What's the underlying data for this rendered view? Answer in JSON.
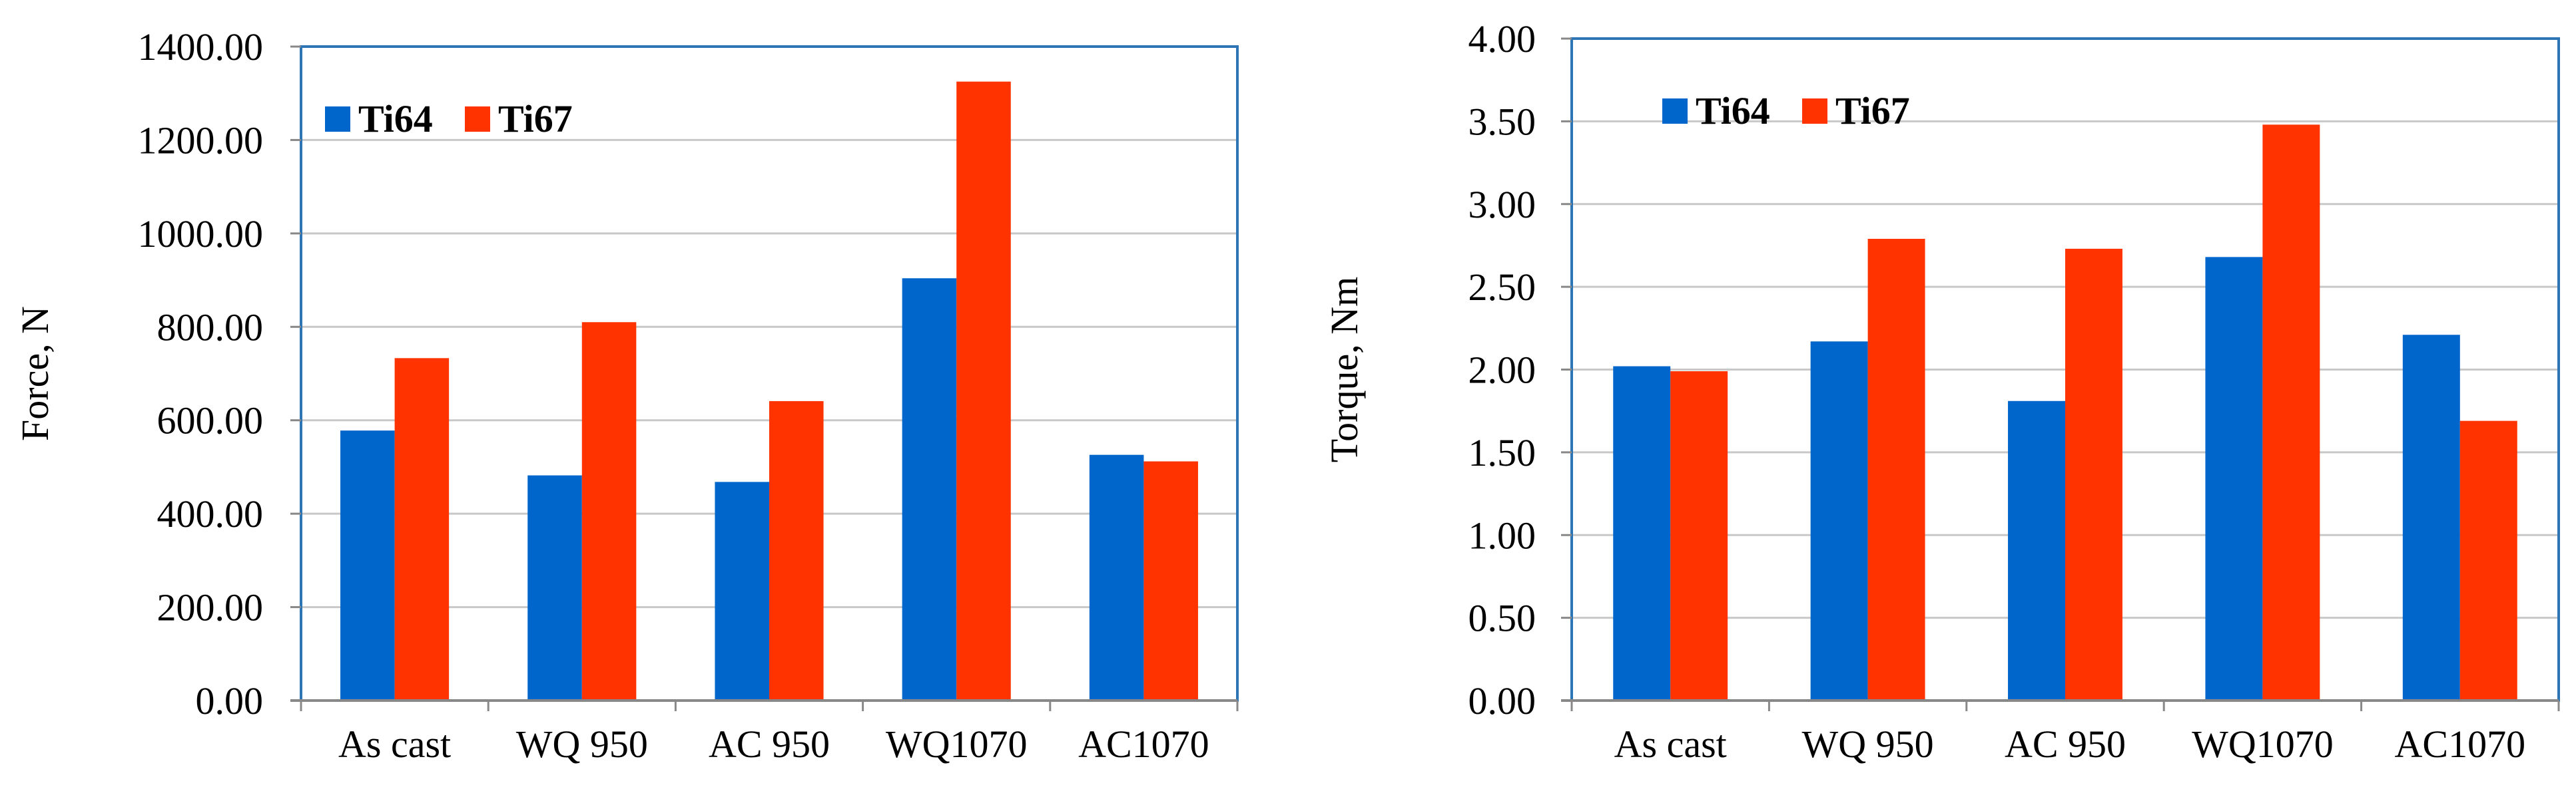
{
  "colors": {
    "ti64": "#0066cc",
    "ti67": "#ff3300",
    "frame": "#2e75b6",
    "grid": "#c8c8c8"
  },
  "chart_data": [
    {
      "type": "bar",
      "title": "",
      "xlabel": "",
      "ylabel": "Force, N",
      "categories": [
        "As cast",
        "WQ 950",
        "AC 950",
        "WQ1070",
        "AC1070"
      ],
      "ylim": [
        0,
        1400
      ],
      "yticks": [
        0,
        200,
        400,
        600,
        800,
        1000,
        1200,
        1400
      ],
      "ytick_labels": [
        "0.00",
        "200.00",
        "400.00",
        "600.00",
        "800.00",
        "1000.00",
        "1200.00",
        "1400.00"
      ],
      "grid": true,
      "legend_position": "top-left",
      "series": [
        {
          "name": "Ti64",
          "values": [
            578,
            482,
            468,
            904,
            526
          ]
        },
        {
          "name": "Ti67",
          "values": [
            733,
            810,
            641,
            1325,
            512
          ]
        }
      ]
    },
    {
      "type": "bar",
      "title": "",
      "xlabel": "",
      "ylabel": "Torque, Nm",
      "categories": [
        "As cast",
        "WQ 950",
        "AC 950",
        "WQ1070",
        "AC1070"
      ],
      "ylim": [
        0,
        4
      ],
      "yticks": [
        0,
        0.5,
        1,
        1.5,
        2,
        2.5,
        3,
        3.5,
        4
      ],
      "ytick_labels": [
        "0.00",
        "0.50",
        "1.00",
        "1.50",
        "2.00",
        "2.50",
        "3.00",
        "3.50",
        "4.00"
      ],
      "grid": true,
      "legend_position": "top-left",
      "series": [
        {
          "name": "Ti64",
          "values": [
            2.02,
            2.17,
            1.81,
            2.68,
            2.21
          ]
        },
        {
          "name": "Ti67",
          "values": [
            1.99,
            2.79,
            2.73,
            3.48,
            1.69
          ]
        }
      ]
    }
  ]
}
